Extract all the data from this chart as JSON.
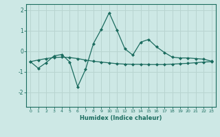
{
  "xlabel": "Humidex (Indice chaleur)",
  "background_color": "#cde8e5",
  "grid_color": "#b8d4d0",
  "line_color": "#1a6b5e",
  "xlim": [
    -0.5,
    23.5
  ],
  "ylim": [
    -2.7,
    2.3
  ],
  "xticks": [
    0,
    1,
    2,
    3,
    4,
    5,
    6,
    7,
    8,
    9,
    10,
    11,
    12,
    13,
    14,
    15,
    16,
    17,
    18,
    19,
    20,
    21,
    22,
    23
  ],
  "yticks": [
    -2,
    -1,
    0,
    1,
    2
  ],
  "series1_x": [
    0,
    1,
    2,
    3,
    4,
    5,
    6,
    7,
    8,
    9,
    10,
    11,
    12,
    13,
    14,
    15,
    16,
    17,
    18,
    19,
    20,
    21,
    22,
    23
  ],
  "series1_y": [
    -0.5,
    -0.42,
    -0.35,
    -0.3,
    -0.28,
    -0.3,
    -0.35,
    -0.42,
    -0.48,
    -0.52,
    -0.56,
    -0.6,
    -0.62,
    -0.63,
    -0.63,
    -0.64,
    -0.64,
    -0.64,
    -0.62,
    -0.6,
    -0.58,
    -0.55,
    -0.52,
    -0.5
  ],
  "series2_x": [
    0,
    1,
    2,
    3,
    4,
    5,
    6,
    7,
    8,
    9,
    10,
    11,
    12,
    13,
    14,
    15,
    16,
    17,
    18,
    19,
    20,
    21,
    22,
    23
  ],
  "series2_y": [
    -0.5,
    -0.82,
    -0.55,
    -0.22,
    -0.15,
    -0.52,
    -1.72,
    -0.88,
    0.38,
    1.08,
    1.88,
    1.02,
    0.12,
    -0.18,
    0.45,
    0.58,
    0.22,
    -0.05,
    -0.28,
    -0.32,
    -0.32,
    -0.35,
    -0.38,
    -0.48
  ]
}
